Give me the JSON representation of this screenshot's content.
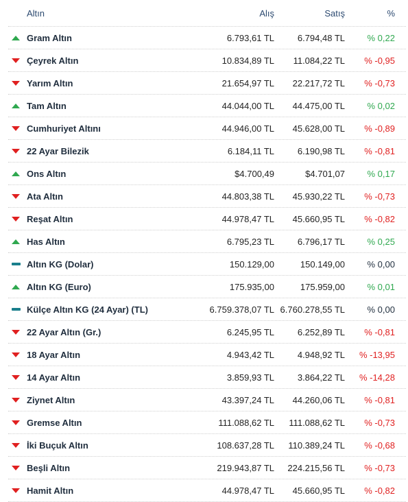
{
  "header": {
    "name": "Altın",
    "buy": "Alış",
    "sell": "Satış",
    "pct": "%"
  },
  "colors": {
    "up": "#2fa84f",
    "down": "#e02020",
    "flat": "#1a7f8c"
  },
  "rows": [
    {
      "name": "Gram Altın",
      "buy": "6.793,61 TL",
      "sell": "6.794,48 TL",
      "pct": "% 0,22",
      "trend": "up",
      "icon": "arrow-up-icon"
    },
    {
      "name": "Çeyrek Altın",
      "buy": "10.834,89 TL",
      "sell": "11.084,22 TL",
      "pct": "% -0,95",
      "trend": "down",
      "icon": "arrow-down-icon"
    },
    {
      "name": "Yarım Altın",
      "buy": "21.654,97 TL",
      "sell": "22.217,72 TL",
      "pct": "% -0,73",
      "trend": "down",
      "icon": "arrow-down-icon"
    },
    {
      "name": "Tam Altın",
      "buy": "44.044,00 TL",
      "sell": "44.475,00 TL",
      "pct": "% 0,02",
      "trend": "up",
      "icon": "arrow-up-icon"
    },
    {
      "name": "Cumhuriyet Altını",
      "buy": "44.946,00 TL",
      "sell": "45.628,00 TL",
      "pct": "% -0,89",
      "trend": "down",
      "icon": "arrow-down-icon"
    },
    {
      "name": "22 Ayar Bilezik",
      "buy": "6.184,11 TL",
      "sell": "6.190,98 TL",
      "pct": "% -0,81",
      "trend": "down",
      "icon": "arrow-down-icon"
    },
    {
      "name": "Ons Altın",
      "buy": "$4.700,49",
      "sell": "$4.701,07",
      "pct": "% 0,17",
      "trend": "up",
      "icon": "arrow-up-icon"
    },
    {
      "name": "Ata Altın",
      "buy": "44.803,38 TL",
      "sell": "45.930,22 TL",
      "pct": "% -0,73",
      "trend": "down",
      "icon": "arrow-down-icon"
    },
    {
      "name": "Reşat Altın",
      "buy": "44.978,47 TL",
      "sell": "45.660,95 TL",
      "pct": "% -0,82",
      "trend": "down",
      "icon": "arrow-down-icon"
    },
    {
      "name": "Has Altın",
      "buy": "6.795,23 TL",
      "sell": "6.796,17 TL",
      "pct": "% 0,25",
      "trend": "up",
      "icon": "arrow-up-icon"
    },
    {
      "name": "Altın KG (Dolar)",
      "buy": "150.129,00",
      "sell": "150.149,00",
      "pct": "% 0,00",
      "trend": "flat",
      "icon": "dash-icon"
    },
    {
      "name": "Altın KG (Euro)",
      "buy": "175.935,00",
      "sell": "175.959,00",
      "pct": "% 0,01",
      "trend": "up",
      "icon": "arrow-up-icon"
    },
    {
      "name": "Külçe Altın KG (24 Ayar) (TL)",
      "buy": "6.759.378,07 TL",
      "sell": "6.760.278,55 TL",
      "pct": "% 0,00",
      "trend": "flat",
      "icon": "dash-icon"
    },
    {
      "name": "22 Ayar Altın (Gr.)",
      "buy": "6.245,95 TL",
      "sell": "6.252,89 TL",
      "pct": "% -0,81",
      "trend": "down",
      "icon": "arrow-down-icon"
    },
    {
      "name": "18 Ayar Altın",
      "buy": "4.943,42 TL",
      "sell": "4.948,92 TL",
      "pct": "% -13,95",
      "trend": "down",
      "icon": "arrow-down-icon"
    },
    {
      "name": "14 Ayar Altın",
      "buy": "3.859,93 TL",
      "sell": "3.864,22 TL",
      "pct": "% -14,28",
      "trend": "down",
      "icon": "arrow-down-icon"
    },
    {
      "name": "Ziynet Altın",
      "buy": "43.397,24 TL",
      "sell": "44.260,06 TL",
      "pct": "% -0,81",
      "trend": "down",
      "icon": "arrow-down-icon"
    },
    {
      "name": "Gremse Altın",
      "buy": "111.088,62 TL",
      "sell": "111.088,62 TL",
      "pct": "% -0,73",
      "trend": "down",
      "icon": "arrow-down-icon"
    },
    {
      "name": "İki Buçuk Altın",
      "buy": "108.637,28 TL",
      "sell": "110.389,24 TL",
      "pct": "% -0,68",
      "trend": "down",
      "icon": "arrow-down-icon"
    },
    {
      "name": "Beşli Altın",
      "buy": "219.943,87 TL",
      "sell": "224.215,56 TL",
      "pct": "% -0,73",
      "trend": "down",
      "icon": "arrow-down-icon"
    },
    {
      "name": "Hamit Altın",
      "buy": "44.978,47 TL",
      "sell": "45.660,95 TL",
      "pct": "% -0,82",
      "trend": "down",
      "icon": "arrow-down-icon"
    }
  ]
}
